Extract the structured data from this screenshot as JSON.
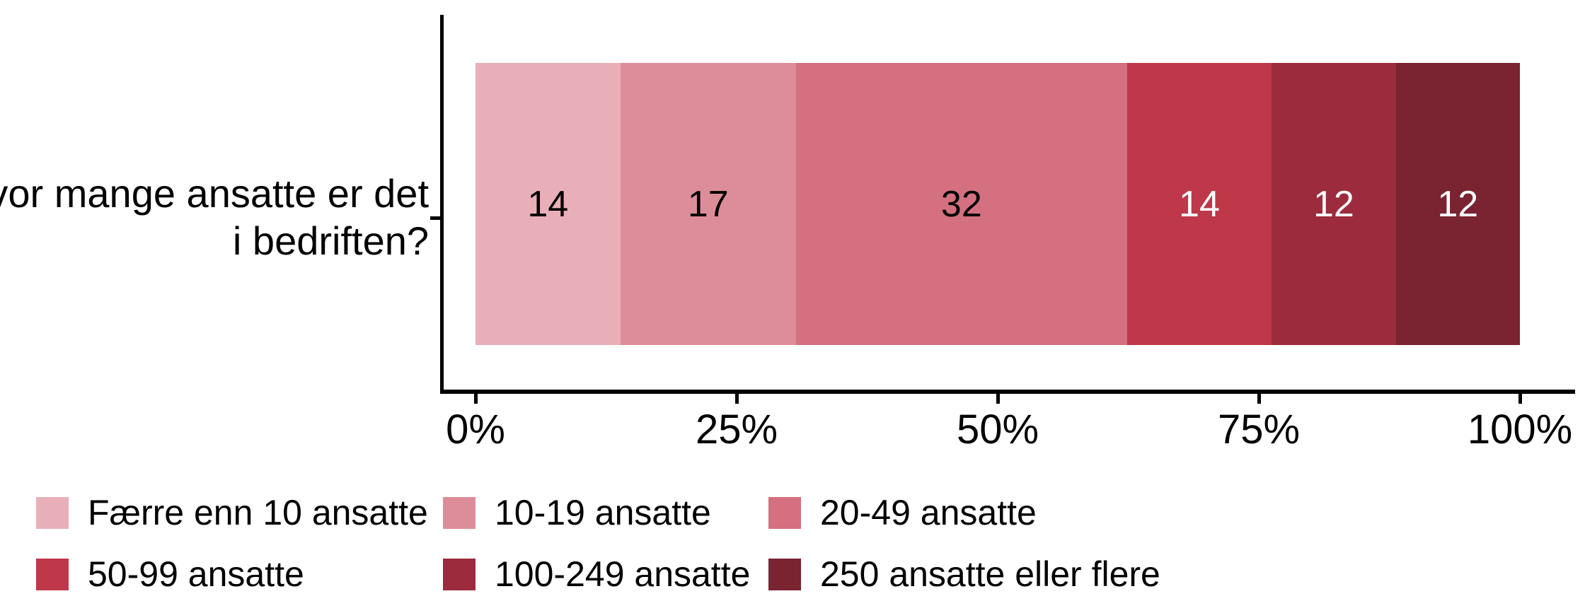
{
  "chart_data": {
    "type": "bar",
    "stacked": true,
    "orientation": "horizontal",
    "question": "Hvor mange ansatte er det i bedriften?",
    "question_lines": [
      "Hvor mange ansatte er det",
      "i bedriften?"
    ],
    "categories": [
      "Færre enn 10 ansatte",
      "10-19 ansatte",
      "20-49 ansatte",
      "50-99 ansatte",
      "100-249 ansatte",
      "250 ansatte eller flere"
    ],
    "values": [
      14,
      17,
      32,
      14,
      12,
      12
    ],
    "colors": [
      "#E9AFB9",
      "#DD8D99",
      "#D4707F",
      "#BE3849",
      "#9C2B3D",
      "#7A2331"
    ],
    "label_colors": [
      "#000000",
      "#000000",
      "#000000",
      "#FFFFFF",
      "#FFFFFF",
      "#FFFFFF"
    ],
    "x_ticks": [
      "0%",
      "25%",
      "50%",
      "75%",
      "100%"
    ],
    "x_tick_percents": [
      0,
      25,
      50,
      75,
      100
    ],
    "xlim": [
      0,
      100
    ],
    "grid": false,
    "legend_position": "bottom",
    "axis_color": "#000000"
  }
}
